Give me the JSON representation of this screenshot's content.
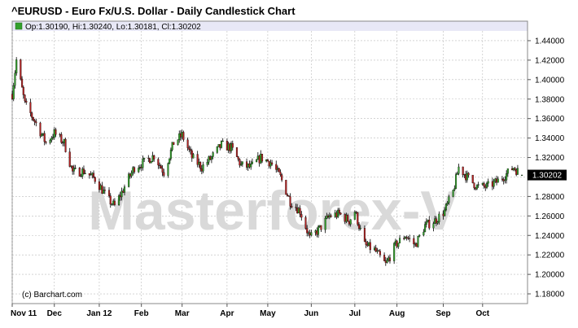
{
  "title": "^EURUSD - Euro Fx/U.S. Dollar - Daily Candlestick Chart",
  "ohlc_text": "Op:1.30190, Hi:1.30240, Lo:1.30181, Cl:1.30202",
  "watermark": "Masterforex-V",
  "copyright": "(c) Barchart.com",
  "last_price_label": "1.30202",
  "colors": {
    "up": "#33a02c",
    "down": "#b22222",
    "header_band": "#e8e8f6",
    "grid": "#bbbbbb"
  },
  "chart_data": {
    "type": "candlestick",
    "symbol": "^EURUSD",
    "y_ticks": [
      "1.44000",
      "1.42000",
      "1.40000",
      "1.38000",
      "1.36000",
      "1.34000",
      "1.32000",
      "1.30000",
      "1.28000",
      "1.26000",
      "1.24000",
      "1.22000",
      "1.20000",
      "1.18000"
    ],
    "ylim": [
      1.17,
      1.45
    ],
    "x_tick_labels": [
      "Nov 11",
      "Dec",
      "Jan 12",
      "Feb",
      "Mar",
      "Apr",
      "May",
      "Jun",
      "Jul",
      "Aug",
      "Sep",
      "Oct"
    ],
    "x_tick_dates": [
      "2011-11-01",
      "2011-12-01",
      "2012-01-02",
      "2012-02-01",
      "2012-03-01",
      "2012-04-02",
      "2012-05-01",
      "2012-06-01",
      "2012-07-02",
      "2012-08-01",
      "2012-09-03",
      "2012-10-01"
    ],
    "close_path": [
      [
        "2011-11-01",
        1.385
      ],
      [
        "2011-11-04",
        1.42
      ],
      [
        "2011-11-10",
        1.375
      ],
      [
        "2011-11-18",
        1.355
      ],
      [
        "2011-11-25",
        1.335
      ],
      [
        "2011-12-01",
        1.345
      ],
      [
        "2011-12-08",
        1.335
      ],
      [
        "2011-12-14",
        1.305
      ],
      [
        "2011-12-22",
        1.306
      ],
      [
        "2011-12-30",
        1.298
      ],
      [
        "2012-01-09",
        1.276
      ],
      [
        "2012-01-13",
        1.27
      ],
      [
        "2012-01-20",
        1.29
      ],
      [
        "2012-01-27",
        1.31
      ],
      [
        "2012-02-03",
        1.315
      ],
      [
        "2012-02-10",
        1.322
      ],
      [
        "2012-02-17",
        1.305
      ],
      [
        "2012-02-24",
        1.335
      ],
      [
        "2012-03-01",
        1.343
      ],
      [
        "2012-03-08",
        1.32
      ],
      [
        "2012-03-15",
        1.31
      ],
      [
        "2012-03-22",
        1.32
      ],
      [
        "2012-03-29",
        1.333
      ],
      [
        "2012-04-05",
        1.33
      ],
      [
        "2012-04-12",
        1.312
      ],
      [
        "2012-04-19",
        1.31
      ],
      [
        "2012-04-26",
        1.32
      ],
      [
        "2012-05-03",
        1.315
      ],
      [
        "2012-05-10",
        1.3
      ],
      [
        "2012-05-17",
        1.275
      ],
      [
        "2012-05-24",
        1.265
      ],
      [
        "2012-05-31",
        1.237
      ],
      [
        "2012-06-07",
        1.247
      ],
      [
        "2012-06-14",
        1.26
      ],
      [
        "2012-06-21",
        1.262
      ],
      [
        "2012-06-28",
        1.255
      ],
      [
        "2012-07-02",
        1.265
      ],
      [
        "2012-07-09",
        1.23
      ],
      [
        "2012-07-16",
        1.225
      ],
      [
        "2012-07-24",
        1.21
      ],
      [
        "2012-07-31",
        1.23
      ],
      [
        "2012-08-07",
        1.24
      ],
      [
        "2012-08-14",
        1.23
      ],
      [
        "2012-08-21",
        1.25
      ],
      [
        "2012-08-28",
        1.255
      ],
      [
        "2012-09-04",
        1.265
      ],
      [
        "2012-09-10",
        1.285
      ],
      [
        "2012-09-14",
        1.31
      ],
      [
        "2012-09-20",
        1.3
      ],
      [
        "2012-09-27",
        1.29
      ],
      [
        "2012-10-04",
        1.29
      ],
      [
        "2012-10-11",
        1.295
      ],
      [
        "2012-10-18",
        1.303
      ],
      [
        "2012-10-23",
        1.31
      ],
      [
        "2012-10-29",
        1.302
      ]
    ],
    "last": {
      "open": 1.3019,
      "high": 1.3024,
      "low": 1.30181,
      "close": 1.30202
    },
    "grid": true
  }
}
